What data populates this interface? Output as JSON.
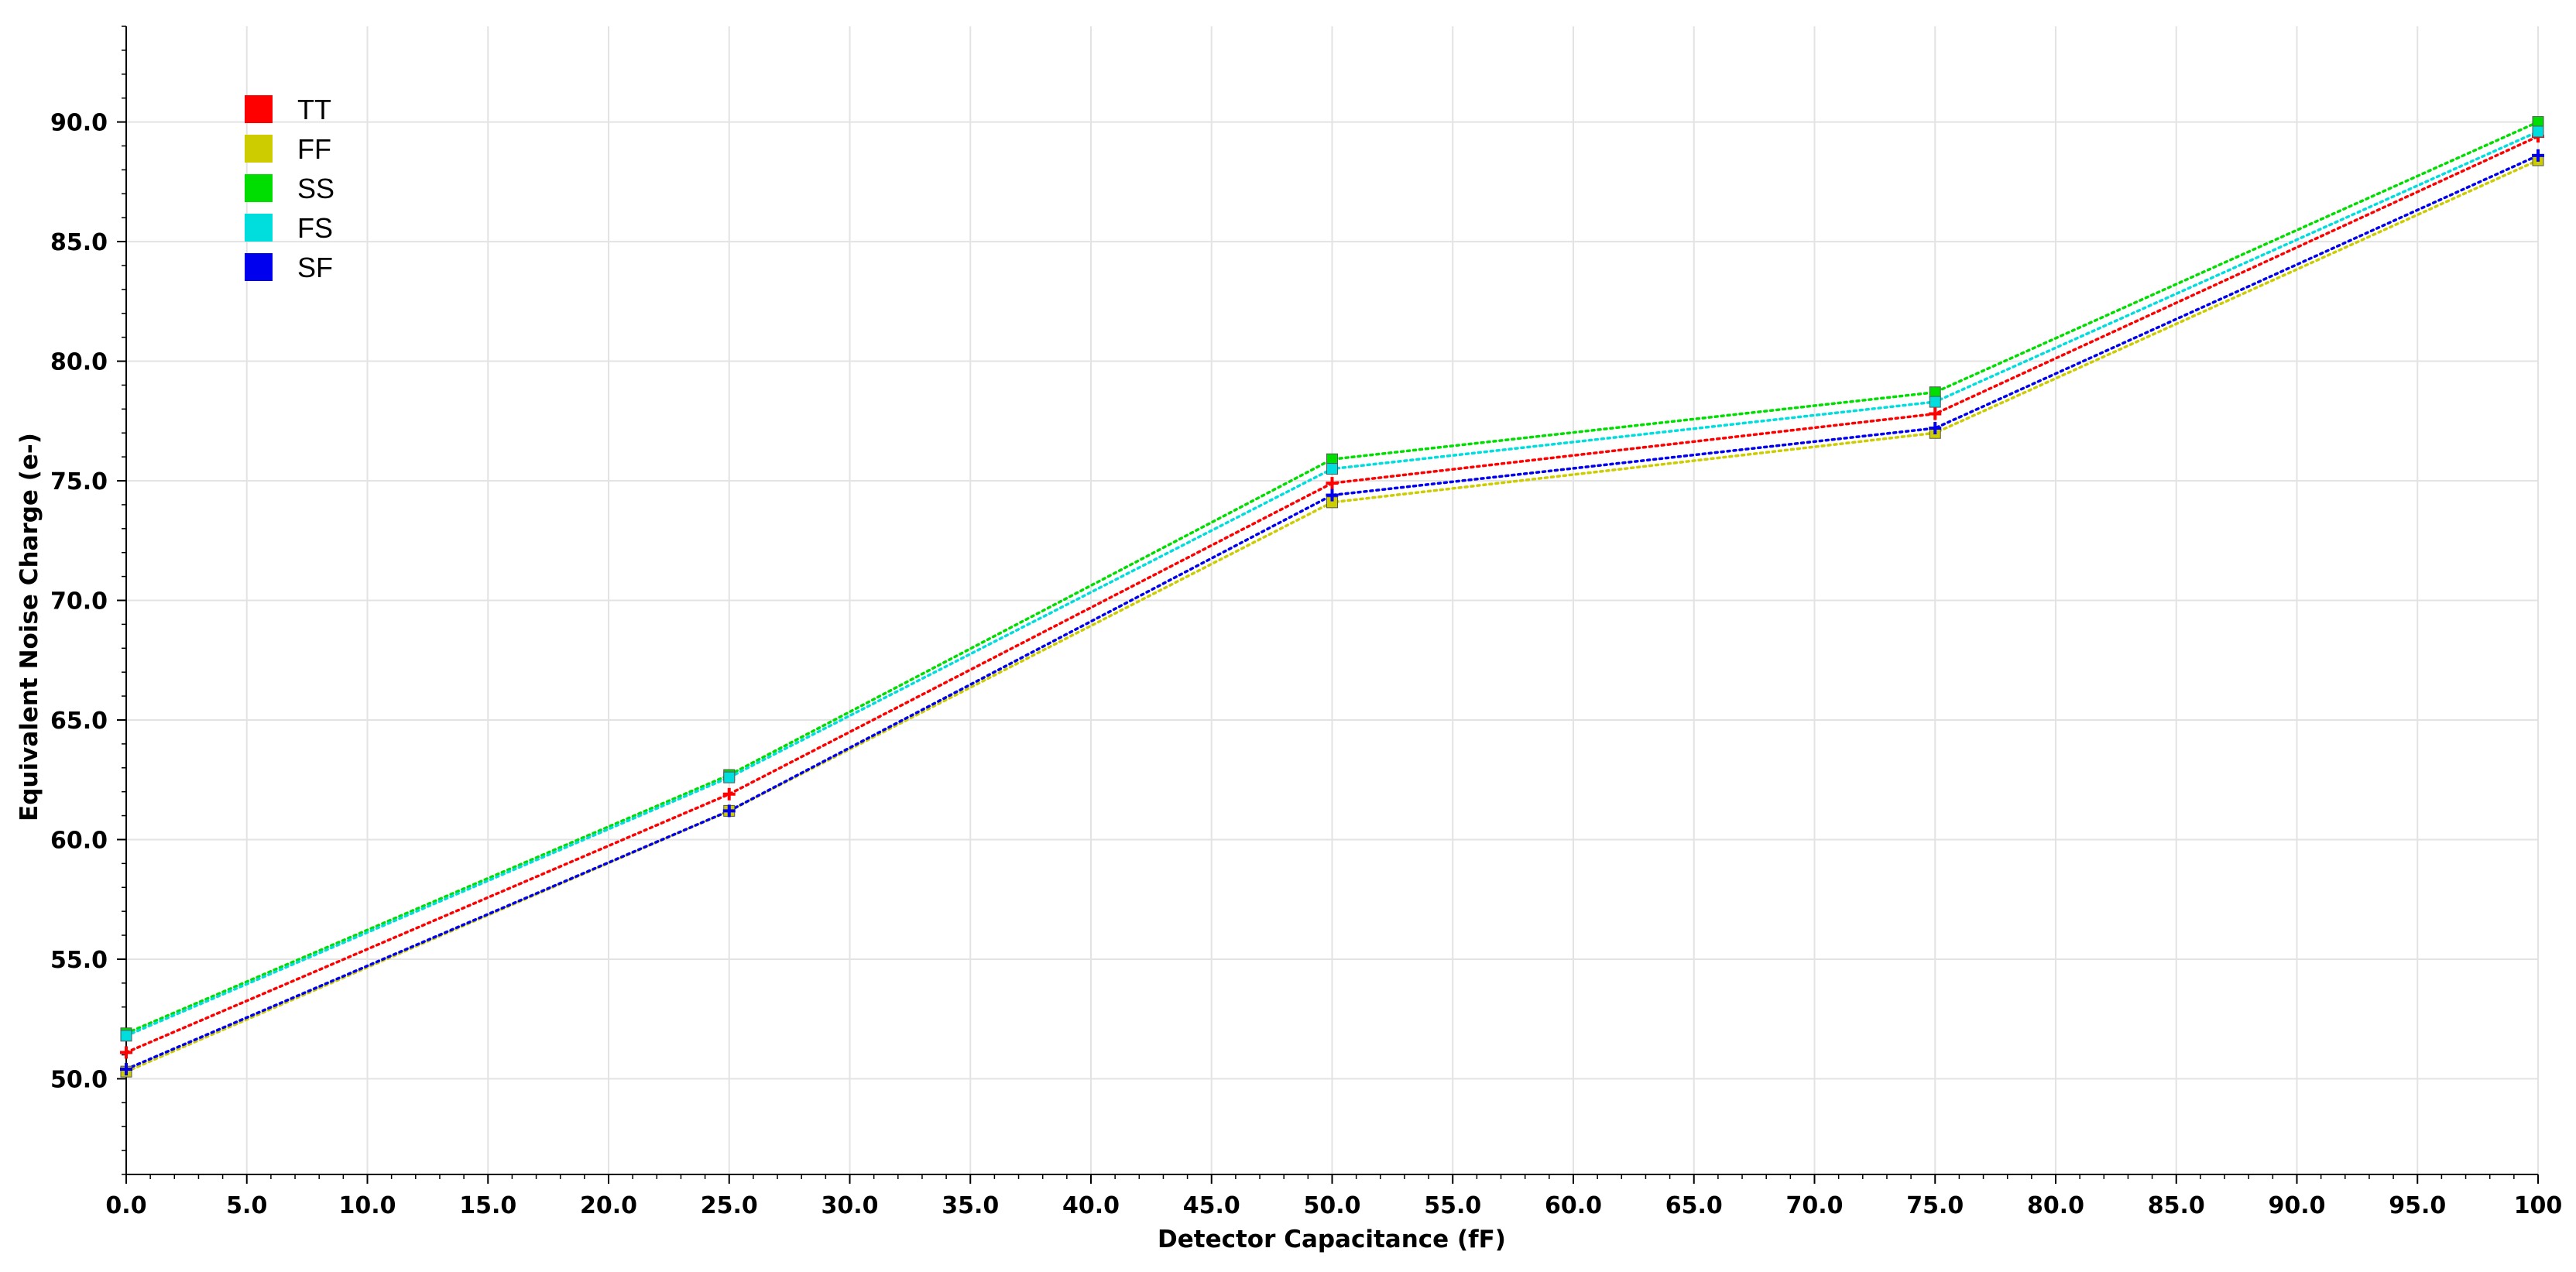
{
  "chart_data": {
    "type": "line",
    "title": "",
    "xlabel": "Detector Capacitance (fF)",
    "ylabel": "Equivalent Noise Charge (e-)",
    "x": [
      0,
      25,
      50,
      75,
      100
    ],
    "xlim": [
      0,
      100
    ],
    "ylim": [
      46,
      94
    ],
    "x_ticks": [
      "0.0",
      "5.0",
      "10.0",
      "15.0",
      "20.0",
      "25.0",
      "30.0",
      "35.0",
      "40.0",
      "45.0",
      "50.0",
      "55.0",
      "60.0",
      "65.0",
      "70.0",
      "75.0",
      "80.0",
      "85.0",
      "90.0",
      "95.0",
      "100"
    ],
    "y_ticks": [
      "50.0",
      "55.0",
      "60.0",
      "65.0",
      "70.0",
      "75.0",
      "80.0",
      "85.0",
      "90.0"
    ],
    "grid": true,
    "legend_position": "top-left",
    "line_style": "dotted",
    "series": [
      {
        "name": "TT",
        "color": "#ff0000",
        "marker": "plus",
        "values": [
          51.1,
          61.9,
          74.9,
          77.8,
          89.4
        ]
      },
      {
        "name": "FF",
        "color": "#cccc00",
        "marker": "square",
        "values": [
          50.3,
          61.2,
          74.1,
          77.0,
          88.4
        ]
      },
      {
        "name": "SS",
        "color": "#00dd00",
        "marker": "square",
        "values": [
          51.9,
          62.7,
          75.9,
          78.7,
          90.0
        ]
      },
      {
        "name": "FS",
        "color": "#00dddd",
        "marker": "square",
        "values": [
          51.8,
          62.6,
          75.5,
          78.3,
          89.6
        ]
      },
      {
        "name": "SF",
        "color": "#0000ee",
        "marker": "plus",
        "values": [
          50.4,
          61.2,
          74.4,
          77.2,
          88.6
        ]
      }
    ]
  }
}
